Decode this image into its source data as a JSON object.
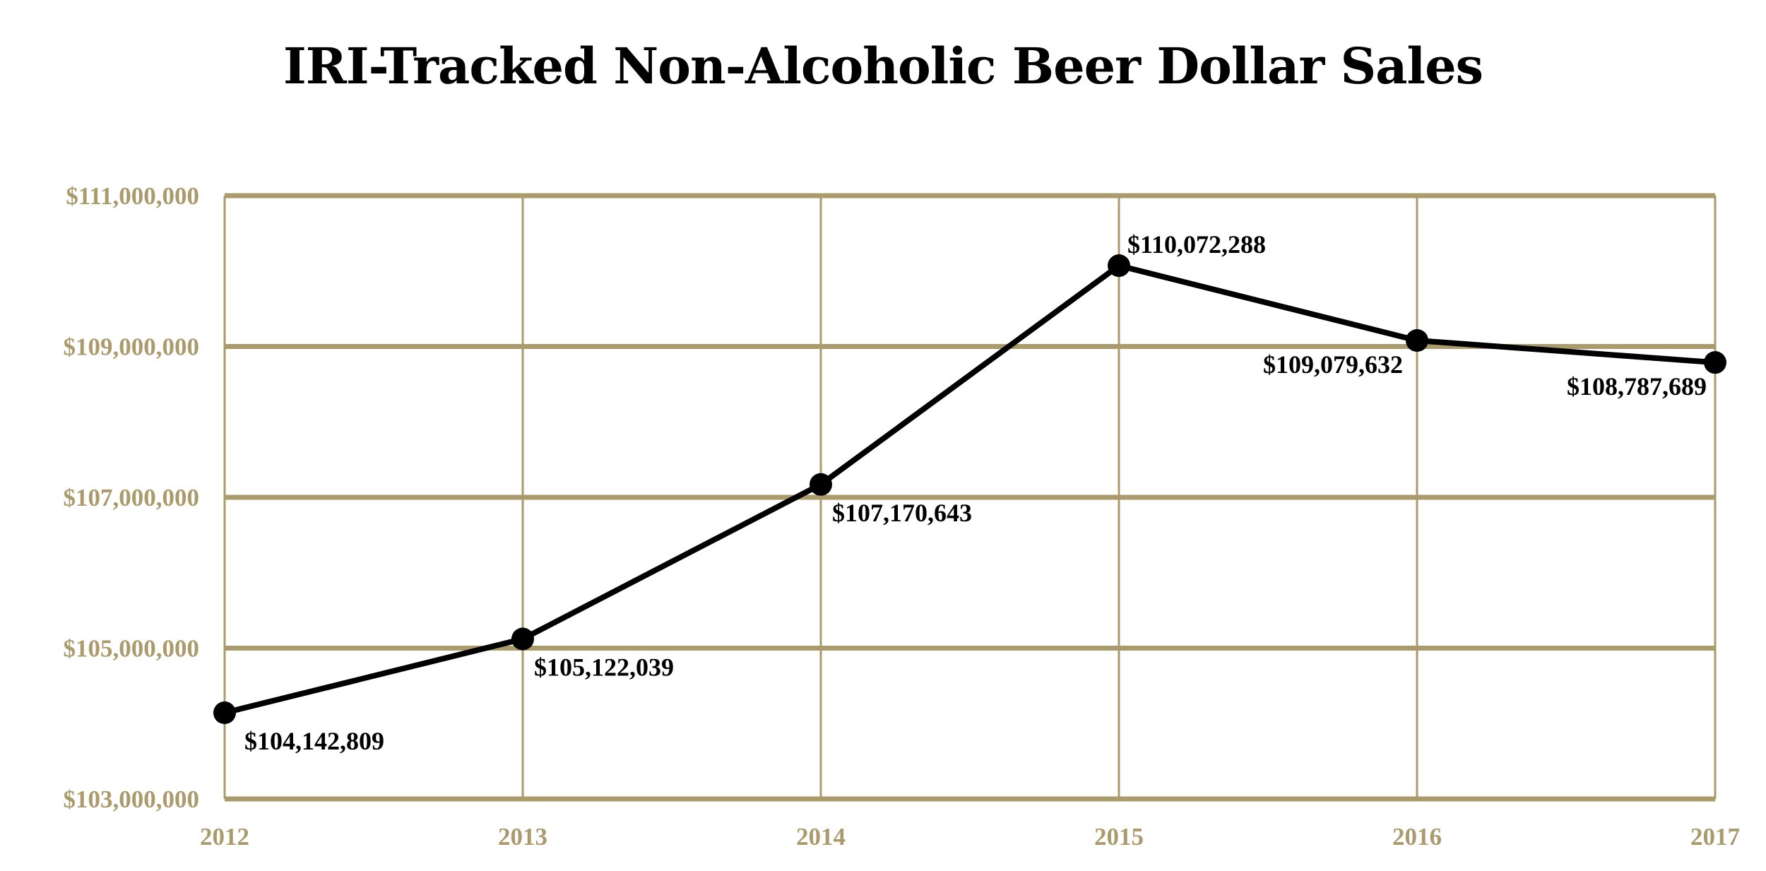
{
  "colors": {
    "axis": "#ab9a6c",
    "line": "#000000",
    "background": "#ffffff"
  },
  "chart_data": {
    "type": "line",
    "title": "IRI-Tracked Non-Alcoholic Beer Dollar Sales",
    "xlabel": "",
    "ylabel": "",
    "x": [
      2012,
      2013,
      2014,
      2015,
      2016,
      2017
    ],
    "x_tick_labels": [
      "2012",
      "2013",
      "2014",
      "2015",
      "2016",
      "2017"
    ],
    "ylim": [
      103000000,
      111000000
    ],
    "y_ticks": [
      103000000,
      105000000,
      107000000,
      109000000,
      111000000
    ],
    "y_tick_labels": [
      "$103,000,000",
      "$105,000,000",
      "$107,000,000",
      "$109,000,000",
      "$111,000,000"
    ],
    "grid": true,
    "legend": "none",
    "series": [
      {
        "values": [
          104142809,
          105122039,
          107170643,
          110072288,
          109079632,
          108787689
        ],
        "data_labels": [
          "$104,142,809",
          "$105,122,039",
          "$107,170,643",
          "$110,072,288",
          "$109,079,632",
          "$108,787,689"
        ]
      }
    ]
  }
}
